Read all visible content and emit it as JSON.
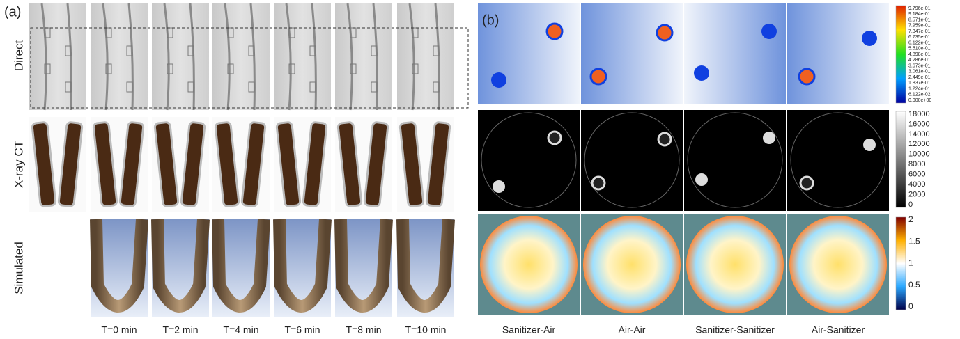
{
  "panel_a": {
    "label": "(a)",
    "row_labels": [
      "Direct",
      "X-ray CT",
      "Simulated"
    ],
    "time_labels": [
      "T=0 min",
      "T=2 min",
      "T=4 min",
      "T=6 min",
      "T=8 min",
      "T=10 min"
    ]
  },
  "panel_b": {
    "label": "(b)",
    "column_labels": [
      "Sanitizer-Air",
      "Air-Air",
      "Sanitizer-Sanitizer",
      "Air-Sanitizer"
    ],
    "colorbar_1_ticks": [
      "9.796e-01",
      "9.184e-01",
      "8.571e-01",
      "7.959e-01",
      "7.347e-01",
      "6.735e-01",
      "6.122e-01",
      "5.510e-01",
      "4.898e-01",
      "4.286e-01",
      "3.673e-01",
      "3.061e-01",
      "2.449e-01",
      "1.837e-01",
      "1.224e-01",
      "6.122e-02",
      "0.000e+00"
    ],
    "colorbar_2_ticks": [
      18000,
      16000,
      14000,
      12000,
      10000,
      8000,
      6000,
      4000,
      2000,
      0
    ],
    "colorbar_3_ticks": [
      2,
      1.5,
      1,
      0.5,
      0
    ]
  }
}
